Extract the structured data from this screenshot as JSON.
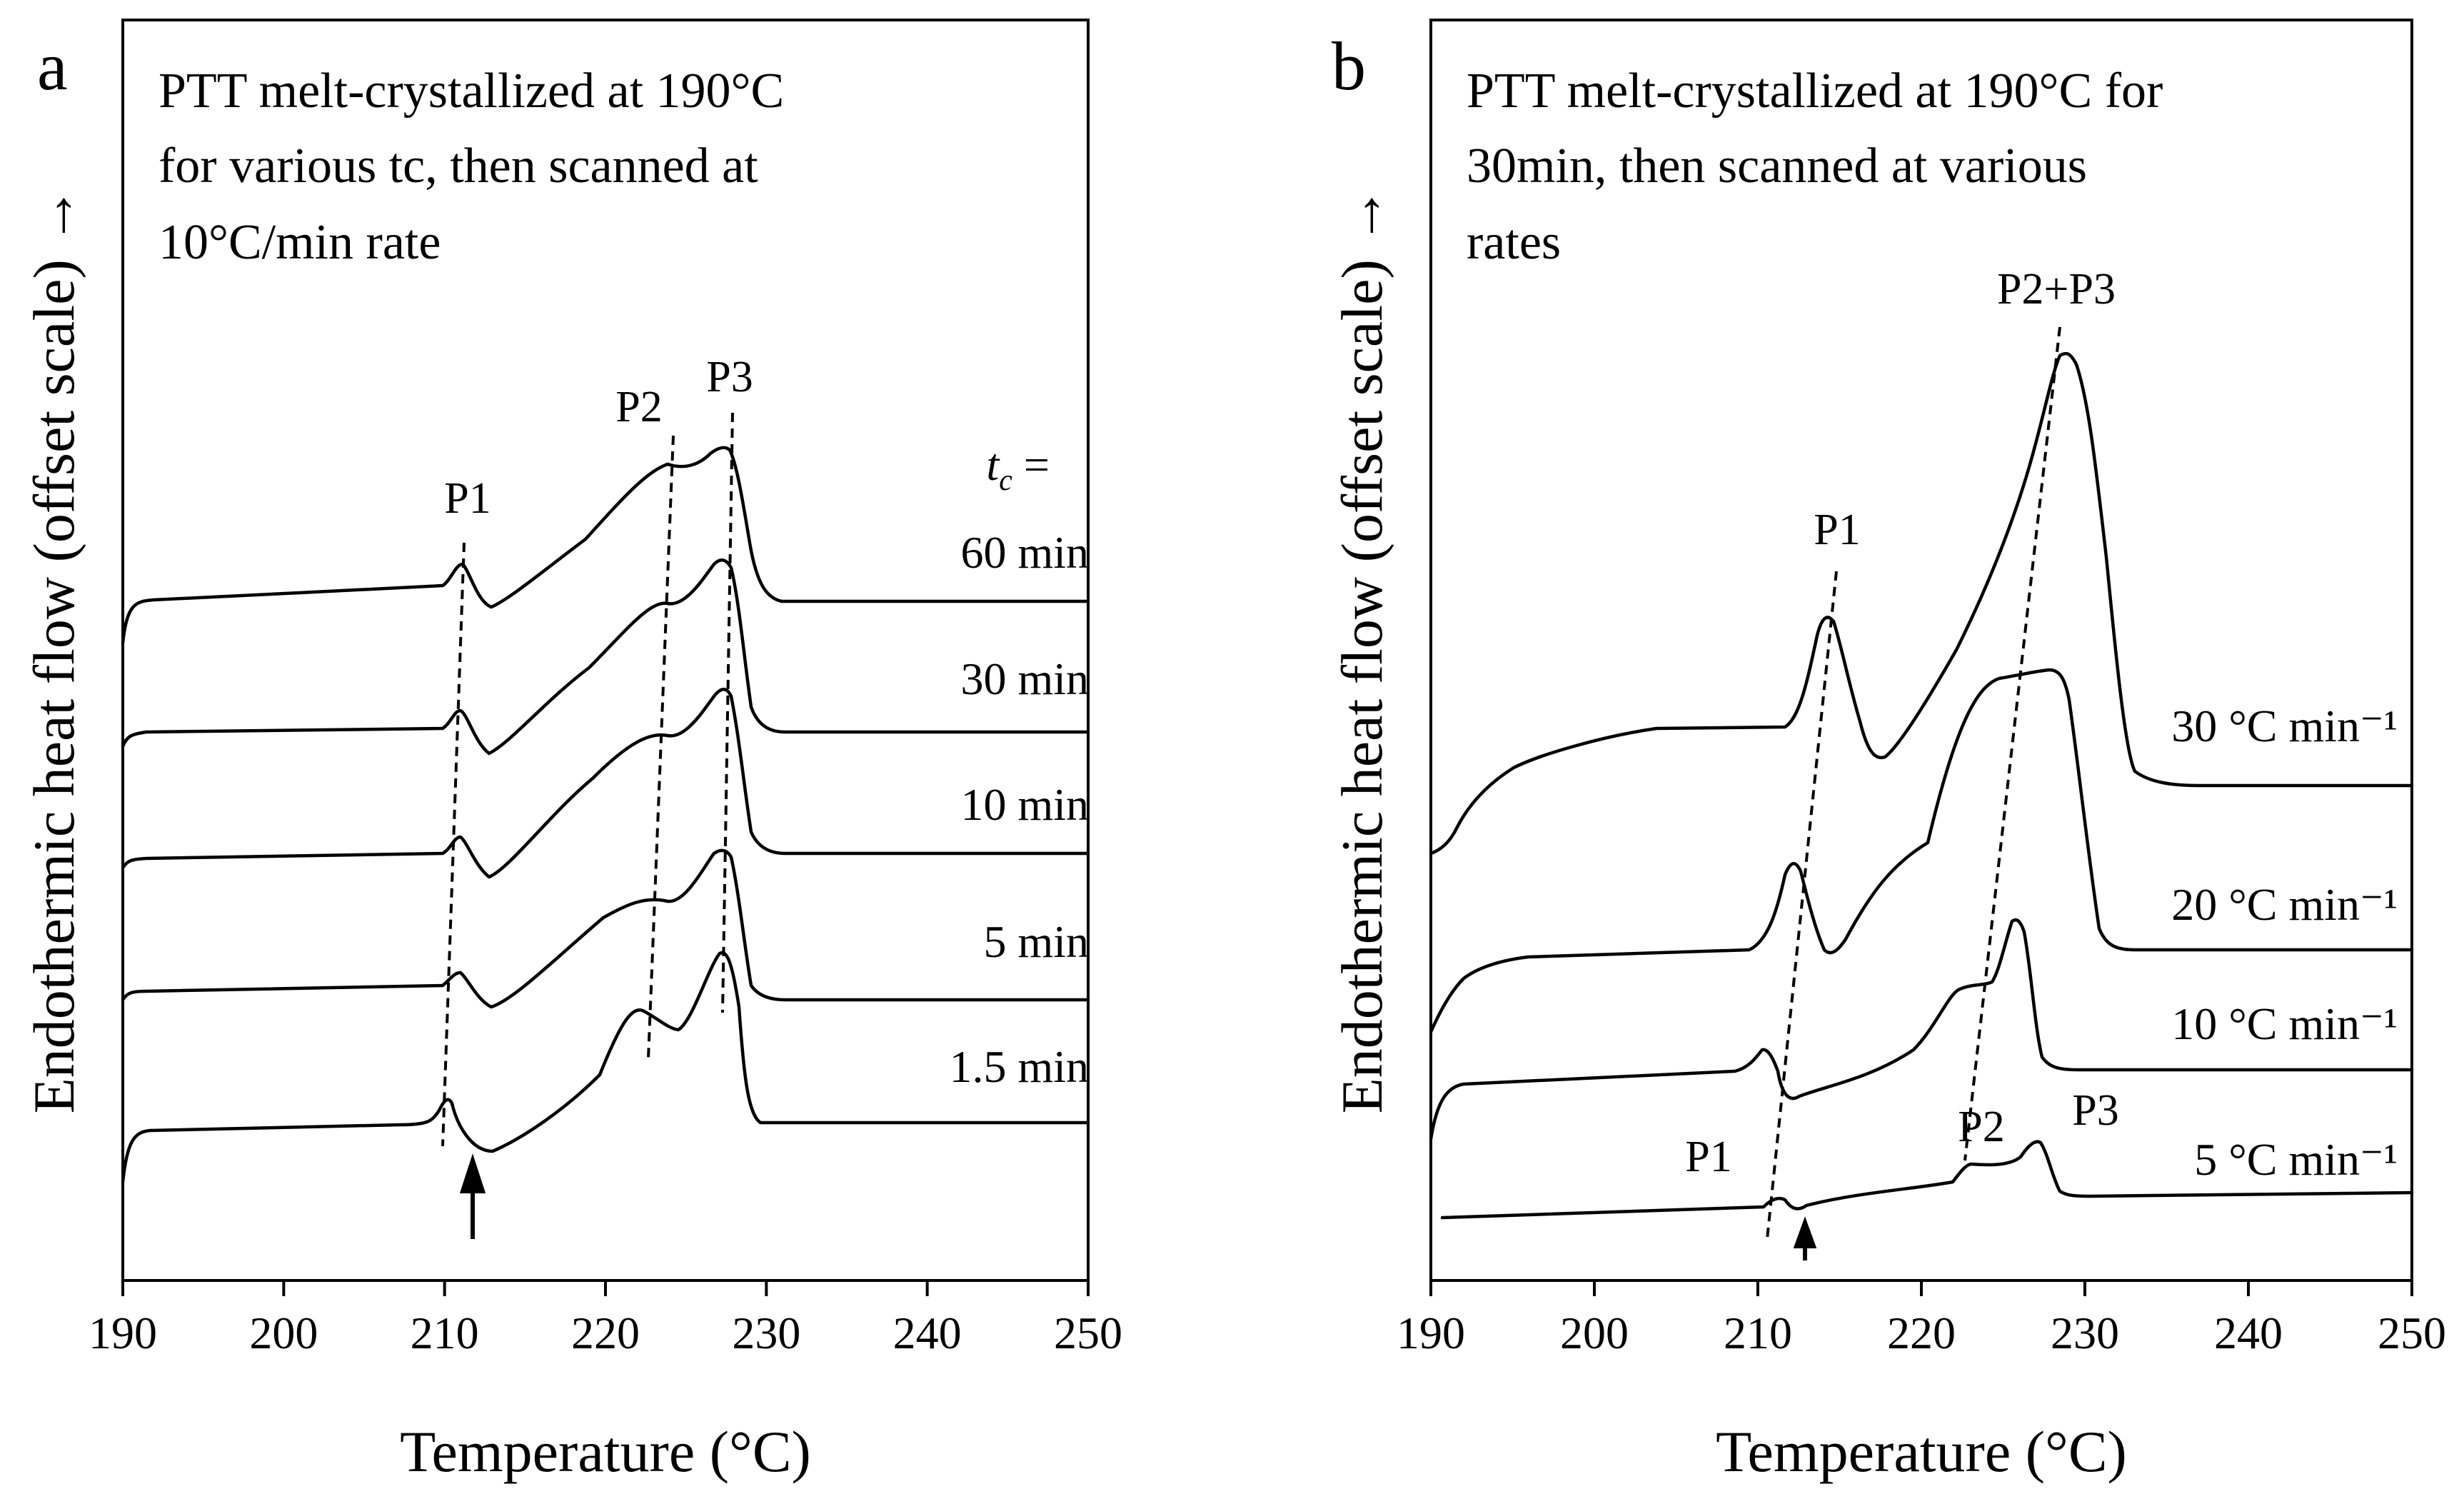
{
  "chart_data": [
    {
      "panel": "a",
      "type": "line",
      "annotation": [
        "PTT melt-crystallized at 190°C",
        "for various tc, then scanned at",
        "10°C/min rate"
      ],
      "xlabel": "Temperature (°C)",
      "ylabel": "Endothermic heat flow (offset scale) →",
      "xlim": [
        190,
        250
      ],
      "xticks": [
        "190",
        "200",
        "210",
        "220",
        "230",
        "240",
        "250"
      ],
      "legend_title": "tc =",
      "peak_labels": [
        "P1",
        "P2",
        "P3"
      ],
      "series": [
        {
          "name": "60 min",
          "peaks": {
            "P1": 211.2,
            "P2": 223.9,
            "P3": 227.6
          }
        },
        {
          "name": "30 min",
          "peaks": {
            "P1": 210.8,
            "P2": 223.3,
            "P3": 227.6
          }
        },
        {
          "name": "10 min",
          "peaks": {
            "P1": 210.6,
            "P2": 223.1,
            "P3": 227.6
          }
        },
        {
          "name": "5 min",
          "peaks": {
            "P1": 210.6,
            "P2": 222.6,
            "P3": 227.6
          }
        },
        {
          "name": "1.5 min",
          "peaks": {
            "P1": 209.8,
            "P2": 222.0,
            "P3": 227.5
          }
        }
      ]
    },
    {
      "panel": "b",
      "type": "line",
      "annotation": [
        "PTT melt-crystallized at 190°C for",
        "30min, then scanned at various",
        "rates"
      ],
      "xlabel": "Temperature (°C)",
      "ylabel": "Endothermic heat flow (offset scale) →",
      "xlim": [
        190,
        250
      ],
      "xticks": [
        "190",
        "200",
        "210",
        "220",
        "230",
        "240",
        "250"
      ],
      "peak_labels": [
        "P1",
        "P2+P3",
        "P1",
        "P2",
        "P3"
      ],
      "series": [
        {
          "name": "30 °C min⁻¹",
          "peaks": {
            "P1": 214.5,
            "P2+P3": 228.2
          }
        },
        {
          "name": "20 °C min⁻¹",
          "peaks": {
            "P1": 212.5,
            "P2+P3": 227.7
          }
        },
        {
          "name": "10 °C min⁻¹",
          "peaks": {
            "P1": 210.8,
            "P2": 223.4,
            "P3": 227.9
          }
        },
        {
          "name": "5 °C min⁻¹",
          "peaks": {
            "P1": 210.7,
            "P2": 222.4,
            "P3": 228.4
          }
        }
      ]
    }
  ]
}
